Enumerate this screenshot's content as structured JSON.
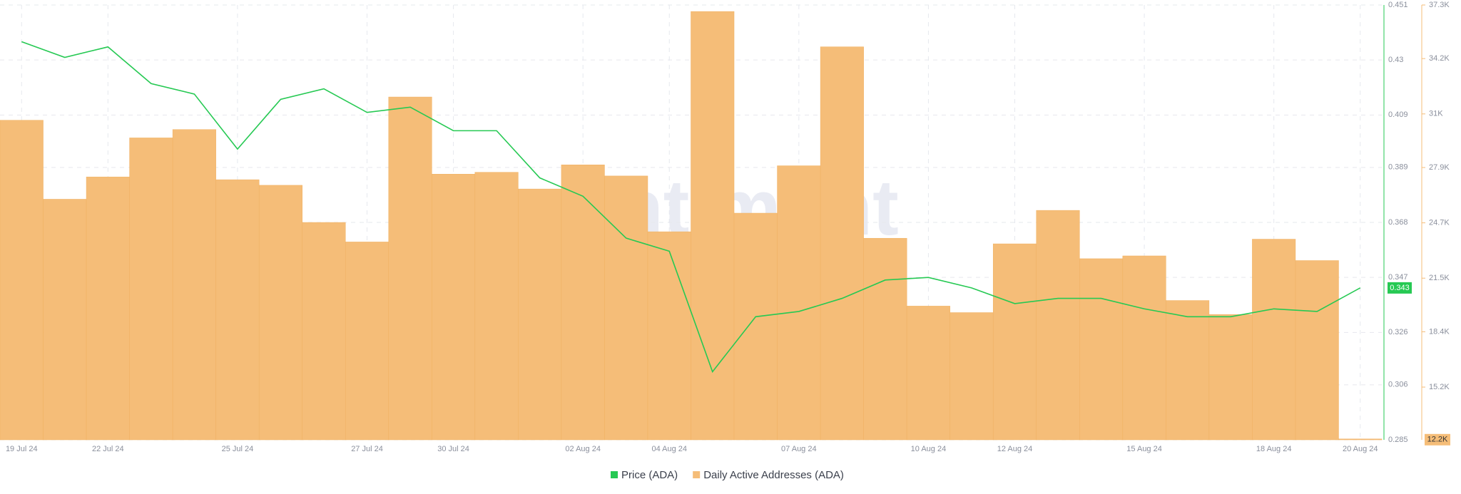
{
  "chart_data": {
    "type": "combo",
    "watermark": "santiment",
    "categories": [
      "19 Jul 24",
      null,
      "22 Jul 24",
      null,
      null,
      "25 Jul 24",
      null,
      null,
      "27 Jul 24",
      null,
      "30 Jul 24",
      null,
      null,
      "02 Aug 24",
      null,
      "04 Aug 24",
      null,
      null,
      "07 Aug 24",
      null,
      null,
      "10 Aug 24",
      null,
      "12 Aug 24",
      null,
      null,
      "15 Aug 24",
      null,
      null,
      "18 Aug 24",
      null,
      "20 Aug 24"
    ],
    "series": [
      {
        "name": "Price (ADA)",
        "type": "line",
        "axis": "y",
        "color": "#26c953",
        "values": [
          0.437,
          0.431,
          0.435,
          0.421,
          0.417,
          0.396,
          0.415,
          0.419,
          0.41,
          0.412,
          0.403,
          0.403,
          0.385,
          0.378,
          0.362,
          0.357,
          0.311,
          0.332,
          0.334,
          0.339,
          0.346,
          0.347,
          0.343,
          0.337,
          0.339,
          0.339,
          0.335,
          0.332,
          0.332,
          0.335,
          0.334,
          0.343
        ]
      },
      {
        "name": "Daily Active Addresses (ADA)",
        "type": "bar",
        "axis": "y2",
        "color": "#f5bd78",
        "values": [
          30635,
          26066,
          27356,
          29614,
          30097,
          27195,
          26873,
          24723,
          23594,
          31979,
          27517,
          27625,
          26658,
          28055,
          27410,
          24185,
          36924,
          25260,
          28001,
          34881,
          23809,
          19885,
          19509,
          23486,
          25421,
          22626,
          22788,
          20208,
          19401,
          23755,
          22519,
          12200
        ]
      }
    ],
    "ylim": [
      0.285,
      0.451
    ],
    "yticks": [
      0.285,
      0.306,
      0.326,
      0.347,
      0.368,
      0.389,
      0.409,
      0.43,
      0.451
    ],
    "y2lim": [
      12150,
      37300
    ],
    "y2ticks": [
      {
        "value": 15200,
        "label": "15.2K"
      },
      {
        "value": 18400,
        "label": "18.4K"
      },
      {
        "value": 21500,
        "label": "21.5K"
      },
      {
        "value": 24700,
        "label": "24.7K"
      },
      {
        "value": 27900,
        "label": "27.9K"
      },
      {
        "value": 31000,
        "label": "31K"
      },
      {
        "value": 34200,
        "label": "34.2K"
      },
      {
        "value": 37300,
        "label": "37.3K"
      }
    ],
    "price_badge": 0.343,
    "addresses_badge": {
      "value": 12200,
      "label": "12.2K"
    },
    "grid": true
  }
}
